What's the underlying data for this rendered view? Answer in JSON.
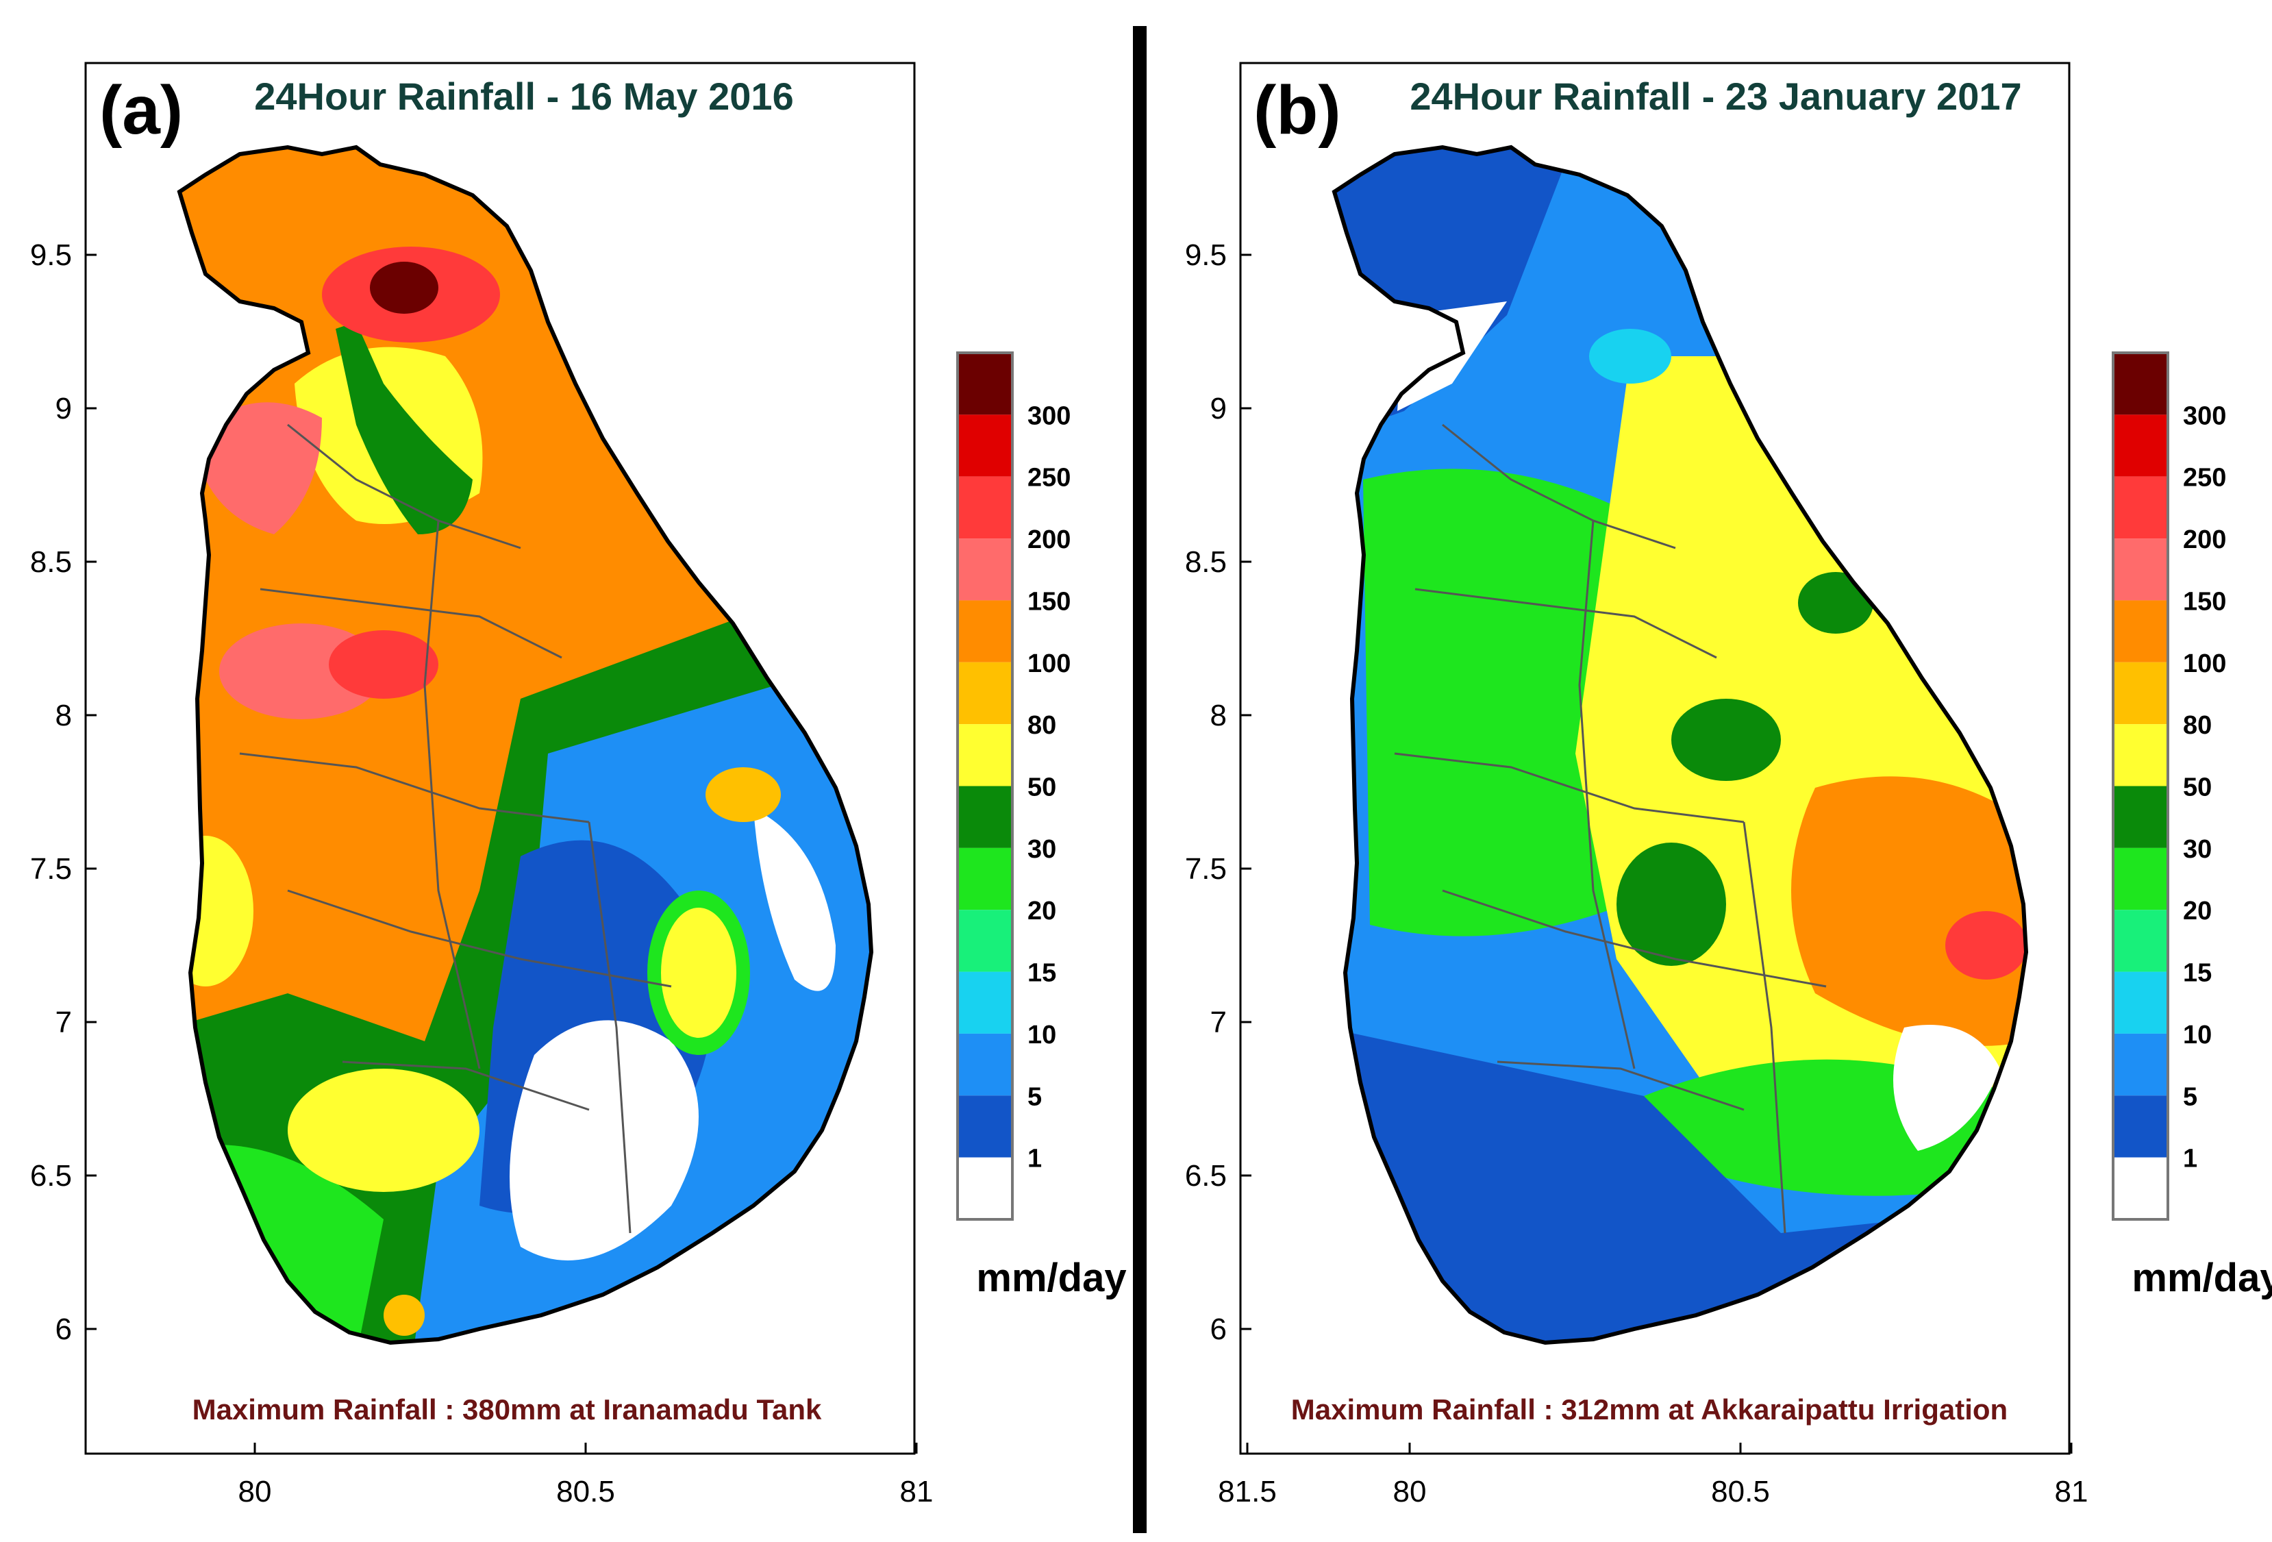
{
  "panel_a": {
    "letter": "(a)",
    "title": "24Hour Rainfall - 16 May 2016",
    "max_rainfall": "Maximum Rainfall : 380mm at Iranamadu Tank",
    "colorbar_unit": "mm/day"
  },
  "panel_b": {
    "letter": "(b)",
    "title": "24Hour Rainfall - 23 January 2017",
    "max_rainfall": "Maximum Rainfall : 312mm at Akkaraipattu Irrigation",
    "colorbar_unit": "mm/day"
  },
  "axes": {
    "x_ticks": [
      "80",
      "80.5",
      "81",
      "81.5"
    ],
    "y_ticks": [
      "6",
      "6.5",
      "7",
      "7.5",
      "8",
      "8.5",
      "9",
      "9.5"
    ]
  },
  "legend": {
    "levels": [
      {
        "label": "300",
        "color": "#6b0000"
      },
      {
        "label": "250",
        "color": "#e00000"
      },
      {
        "label": "200",
        "color": "#ff3a3a"
      },
      {
        "label": "150",
        "color": "#ff6b6b"
      },
      {
        "label": "100",
        "color": "#ff8c00"
      },
      {
        "label": "80",
        "color": "#ffc000"
      },
      {
        "label": "50",
        "color": "#ffff30"
      },
      {
        "label": "30",
        "color": "#0a8a0a"
      },
      {
        "label": "20",
        "color": "#1ee61e"
      },
      {
        "label": "15",
        "color": "#18f07a"
      },
      {
        "label": "10",
        "color": "#18d2f0"
      },
      {
        "label": "5",
        "color": "#1e8ff5"
      },
      {
        "label": "1",
        "color": "#1255c8"
      },
      {
        "label": "",
        "color": "#ffffff"
      }
    ]
  }
}
